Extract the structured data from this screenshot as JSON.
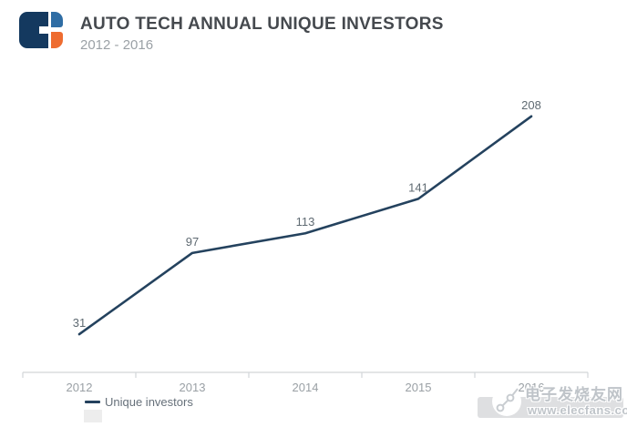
{
  "colors": {
    "line": "#24425e",
    "logo_navy": "#14395f",
    "logo_blue": "#2f6da4",
    "logo_orange": "#ee6c30",
    "title_text": "#45494e",
    "subtitle_text": "#9ba1a6",
    "data_label": "#5f6a72",
    "axis_label": "#9aa0a5",
    "axis_line": "#d2d5d8",
    "legend_text": "#66707a",
    "watermark_text": "#bfc4c9",
    "watermark_block": "#dadcde"
  },
  "header": {
    "logo": "cb-insights-logo",
    "title": "AUTO TECH ANNUAL UNIQUE INVESTORS",
    "subtitle": "2012 - 2016"
  },
  "chart_data": {
    "type": "line",
    "title": "AUTO TECH ANNUAL UNIQUE INVESTORS",
    "subtitle": "2012 - 2016",
    "categories": [
      "2012",
      "2013",
      "2014",
      "2015",
      "2016"
    ],
    "series": [
      {
        "name": "Unique investors",
        "values": [
          31,
          97,
          113,
          141,
          208
        ]
      }
    ],
    "xlabel": "",
    "ylabel": "",
    "ylim": [
      0,
      230
    ],
    "grid": false,
    "y_axis_visible": false,
    "data_labels": true,
    "legend_position": "bottom-left"
  },
  "legend": {
    "label": "Unique investors"
  },
  "watermark": {
    "icon": "trend-nodes-icon",
    "site_name_cn": "电子发烧友网",
    "site_url": "www.elecfans.com"
  }
}
